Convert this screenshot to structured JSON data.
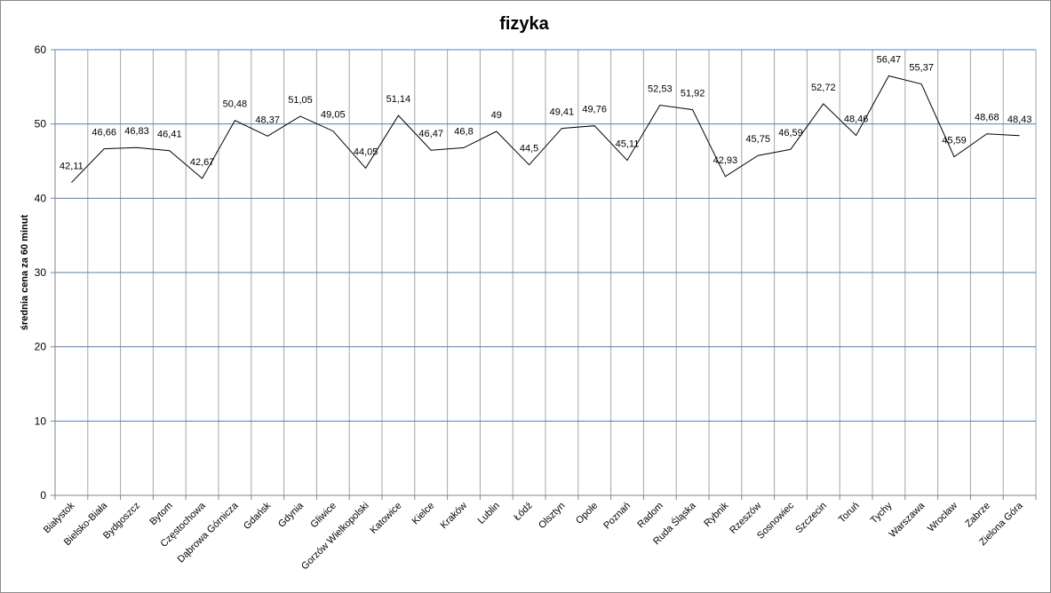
{
  "chart_data": {
    "type": "line",
    "title": "fizyka",
    "xlabel": "",
    "ylabel": "średnia cena za 60 minut",
    "ylim": [
      0,
      60
    ],
    "yticks": [
      "0",
      "10",
      "20",
      "30",
      "40",
      "50",
      "60"
    ],
    "grid": true,
    "categories": [
      "Białystok",
      "Bielsko-Biała",
      "Bydgoszcz",
      "Bytom",
      "Częstochowa",
      "Dąbrowa Górnicza",
      "Gdańsk",
      "Gdynia",
      "Gliwice",
      "Gorzów Wielkopolski",
      "Katowice",
      "Kielce",
      "Kraków",
      "Lublin",
      "Łódź",
      "Olsztyn",
      "Opole",
      "Poznań",
      "Radom",
      "Ruda Śląska",
      "Rybnik",
      "Rzeszów",
      "Sosnowiec",
      "Szczecin",
      "Toruń",
      "Tychy",
      "Warszawa",
      "Wrocław",
      "Zabrze",
      "Zielona Góra"
    ],
    "values": [
      42.11,
      46.66,
      46.83,
      46.41,
      42.67,
      50.48,
      48.37,
      51.05,
      49.05,
      44.05,
      51.14,
      46.47,
      46.8,
      49,
      44.5,
      49.41,
      49.76,
      45.11,
      52.53,
      51.92,
      42.93,
      45.75,
      46.59,
      52.72,
      48.46,
      56.47,
      55.37,
      45.59,
      48.68,
      48.43
    ],
    "data_labels": [
      "42,11",
      "46,66",
      "46,83",
      "46,41",
      "42,67",
      "50,48",
      "48,37",
      "51,05",
      "49,05",
      "44,05",
      "51,14",
      "46,47",
      "46,8",
      "49",
      "44,5",
      "49,41",
      "49,76",
      "45,11",
      "52,53",
      "51,92",
      "42,93",
      "45,75",
      "46,59",
      "52,72",
      "48,46",
      "56,47",
      "55,37",
      "45,59",
      "48,68",
      "48,43"
    ],
    "colors": {
      "line": "#000000",
      "grid": "#4f81bd",
      "vgrid": "#a6a6a6",
      "axis": "#868686"
    }
  }
}
